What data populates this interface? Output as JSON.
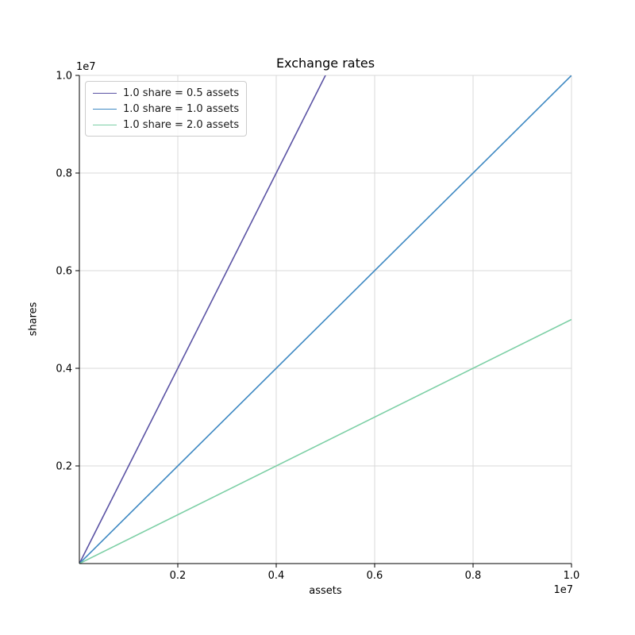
{
  "figure": {
    "background": "#ffffff"
  },
  "chart_data": {
    "type": "line",
    "title": "Exchange rates",
    "xlabel": "assets",
    "ylabel": "shares",
    "x_scale_offset": "1e7",
    "y_scale_offset": "1e7",
    "xlim": [
      0,
      10000000
    ],
    "ylim": [
      0,
      10000000
    ],
    "xticks": [
      {
        "value": 2000000,
        "label": "0.2"
      },
      {
        "value": 4000000,
        "label": "0.4"
      },
      {
        "value": 6000000,
        "label": "0.6"
      },
      {
        "value": 8000000,
        "label": "0.8"
      },
      {
        "value": 10000000,
        "label": "1.0"
      }
    ],
    "yticks": [
      {
        "value": 2000000,
        "label": "0.2"
      },
      {
        "value": 4000000,
        "label": "0.4"
      },
      {
        "value": 6000000,
        "label": "0.6"
      },
      {
        "value": 8000000,
        "label": "0.8"
      },
      {
        "value": 10000000,
        "label": "1.0"
      }
    ],
    "grid": true,
    "grid_color": "#d9d9d9",
    "axis_color": "#000000",
    "text_color": "#000000",
    "legend_position": "upper left",
    "series": [
      {
        "name": "1.0 share = 0.5 assets",
        "assets_per_share": 0.5,
        "color": "#5b53a4",
        "points": [
          [
            0,
            0
          ],
          [
            10000000,
            20000000
          ]
        ]
      },
      {
        "name": "1.0 share = 1.0 assets",
        "assets_per_share": 1.0,
        "color": "#3d88c2",
        "points": [
          [
            0,
            0
          ],
          [
            10000000,
            10000000
          ]
        ]
      },
      {
        "name": "1.0 share = 2.0 assets",
        "assets_per_share": 2.0,
        "color": "#7ccfa5",
        "points": [
          [
            0,
            0
          ],
          [
            10000000,
            5000000
          ]
        ]
      }
    ]
  }
}
